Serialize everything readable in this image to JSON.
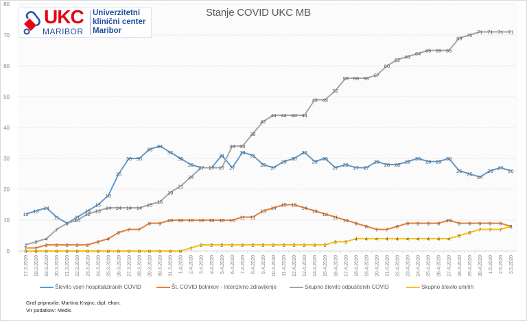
{
  "logo": {
    "brand": "UKC",
    "city": "MARIBOR",
    "name_lines": [
      "Univerzitetni",
      "klinični center",
      "Maribor"
    ]
  },
  "chart_data": {
    "type": "line",
    "title": "Stanje  COVID UKC MB",
    "xlabel": "",
    "ylabel": "",
    "ylim": [
      0,
      80
    ],
    "yticks": [
      0,
      10,
      20,
      30,
      40,
      50,
      60,
      70,
      80
    ],
    "grid": true,
    "legend_position": "bottom",
    "data_labels": true,
    "x": [
      "17.3.2020",
      "18.3.2020",
      "19.3.2020",
      "20.3.2020",
      "21.3.2020",
      "22.3.2020",
      "23.3.2020",
      "24.3.2020",
      "25.3.2020",
      "26.3.2020",
      "27.3.2020",
      "28.3.2020",
      "29.3.2020",
      "30.3.2020",
      "31.3.2020",
      "1.4.2020",
      "2.4.2020",
      "3.4.2020",
      "4.4.2020",
      "5.4.2020",
      "6.4.2020",
      "7.4.2020",
      "8.4.2020",
      "9.4.2020",
      "10.4.2020",
      "11.4.2020",
      "12.4.2020",
      "13.4.2020",
      "14.4.2020",
      "15.4.2020",
      "16.4.2020",
      "17.4.2020",
      "18.4.2020",
      "19.4.2020",
      "20.4.2020",
      "21.4.2020",
      "22.4.2020",
      "23.4.2020",
      "24.4.2020",
      "25.4.2020",
      "26.4.2020",
      "27.4.2020",
      "28.4.2020",
      "29.4.2020",
      "30.4.2020",
      "1.5.2020",
      "2.5.2020",
      "3.5.2020"
    ],
    "series": [
      {
        "name": "Število vseh hospitaliziranih COVID",
        "color": "#5b9bd5",
        "values": [
          12,
          13,
          14,
          11,
          9,
          11,
          13,
          15,
          18,
          25,
          30,
          30,
          33,
          34,
          32,
          30,
          28,
          27,
          27,
          31,
          27,
          32,
          31,
          28,
          27,
          29,
          30,
          32,
          29,
          30,
          27,
          28,
          27,
          27,
          29,
          28,
          28,
          29,
          30,
          29,
          29,
          30,
          26,
          25,
          24,
          26,
          27,
          26
        ]
      },
      {
        "name": "Št. COVID bolnikov - Intenzivno zdravljenje",
        "color": "#ed7d31",
        "values": [
          1,
          1,
          2,
          2,
          2,
          2,
          2,
          3,
          4,
          6,
          7,
          7,
          9,
          9,
          10,
          10,
          10,
          10,
          10,
          10,
          10,
          11,
          11,
          13,
          14,
          15,
          15,
          14,
          13,
          12,
          11,
          10,
          9,
          8,
          7,
          7,
          8,
          9,
          9,
          9,
          9,
          10,
          9,
          9,
          9,
          9,
          9,
          8
        ]
      },
      {
        "name": "Skupno število odpuščenih COVID",
        "color": "#a5a5a5",
        "values": [
          2,
          3,
          4,
          7,
          9,
          10,
          12,
          13,
          14,
          14,
          14,
          14,
          15,
          16,
          19,
          21,
          24,
          27,
          27,
          27,
          34,
          34,
          38,
          42,
          44,
          44,
          44,
          44,
          49,
          49,
          52,
          56,
          56,
          56,
          57,
          60,
          62,
          63,
          64,
          65,
          65,
          65,
          69,
          70,
          71,
          71,
          71,
          71
        ]
      },
      {
        "name": "Skupno število umrlih",
        "color": "#ffc000",
        "values": [
          0,
          0,
          0,
          0,
          0,
          0,
          0,
          0,
          0,
          0,
          0,
          0,
          0,
          0,
          0,
          0,
          1,
          2,
          2,
          2,
          2,
          2,
          2,
          2,
          2,
          2,
          2,
          2,
          2,
          2,
          3,
          3,
          4,
          4,
          4,
          4,
          4,
          4,
          4,
          4,
          4,
          4,
          5,
          6,
          7,
          7,
          7,
          8
        ]
      }
    ]
  },
  "credits": {
    "author": "Graf pripravila: Martina Krajnc, dipl. ekon.",
    "source": "Vir podatkov: Medis"
  }
}
